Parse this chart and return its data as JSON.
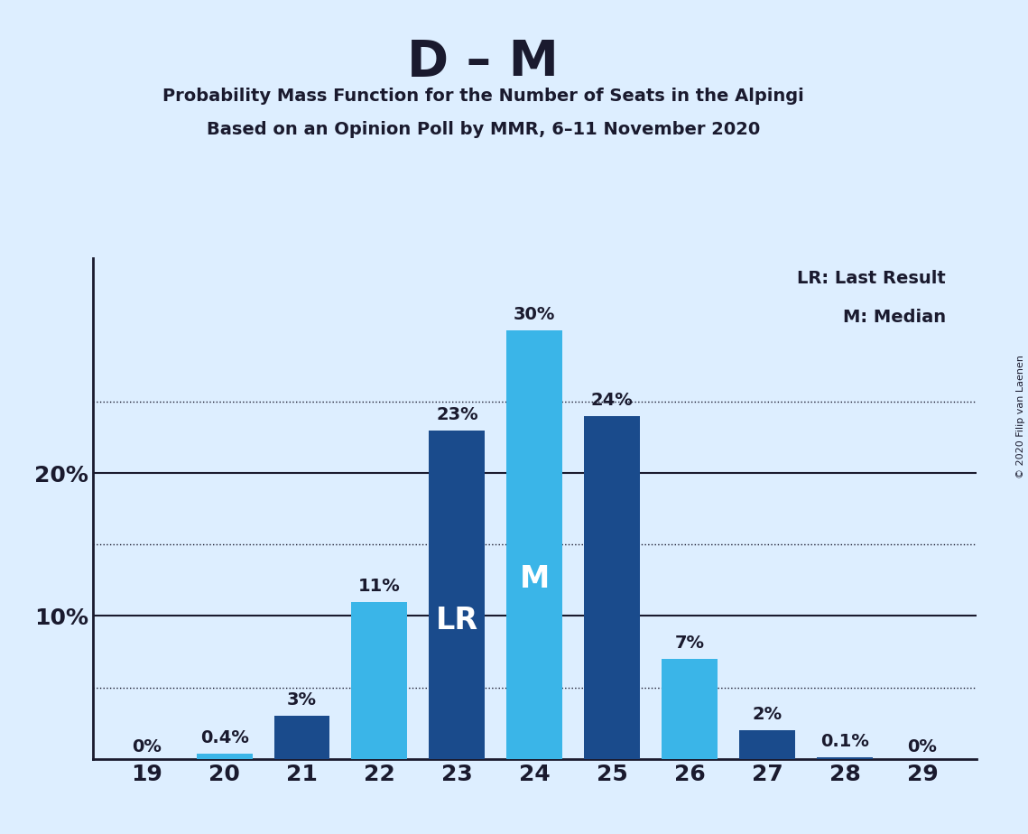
{
  "title": "D – M",
  "subtitle1": "Probability Mass Function for the Number of Seats in the Alpingi",
  "subtitle2": "Based on an Opinion Poll by MMR, 6–11 November 2020",
  "copyright": "© 2020 Filip van Laenen",
  "seats": [
    19,
    20,
    21,
    22,
    23,
    24,
    25,
    26,
    27,
    28,
    29
  ],
  "values": [
    0.0,
    0.4,
    3.0,
    11.0,
    23.0,
    30.0,
    24.0,
    7.0,
    2.0,
    0.1,
    0.0
  ],
  "bar_colors": [
    "#1a4b8c",
    "#3ab5e8",
    "#1a4b8c",
    "#3ab5e8",
    "#1a4b8c",
    "#3ab5e8",
    "#1a4b8c",
    "#3ab5e8",
    "#1a4b8c",
    "#1a4b8c",
    "#1a4b8c"
  ],
  "labels": [
    "0%",
    "0.4%",
    "3%",
    "11%",
    "23%",
    "30%",
    "24%",
    "7%",
    "2%",
    "0.1%",
    "0%"
  ],
  "lr_bar": 23,
  "median_bar": 24,
  "lr_label": "LR",
  "median_label": "M",
  "legend_lr": "LR: Last Result",
  "legend_m": "M: Median",
  "background_color": "#ddeeff",
  "ymax": 35,
  "bar_width": 0.72,
  "title_fontsize": 40,
  "subtitle_fontsize": 14,
  "label_fontsize": 14,
  "tick_fontsize": 18,
  "legend_fontsize": 14,
  "inner_label_fontsize": 24,
  "ytick_solid": [
    10,
    20
  ],
  "ytick_dotted": [
    5,
    15,
    25
  ],
  "dark_blue": "#1a4b8c",
  "light_blue": "#3ab5e8",
  "text_color": "#1a1a2e"
}
